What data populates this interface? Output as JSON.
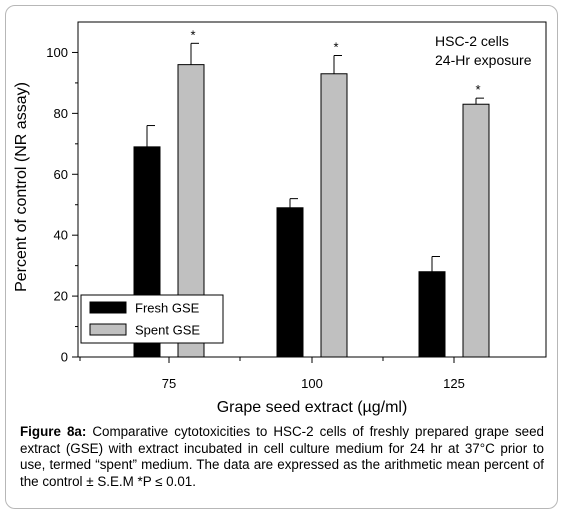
{
  "chart_data": {
    "type": "bar",
    "xlabel": "Grape seed extract (µg/ml)",
    "ylabel": "Percent of control (NR assay)",
    "ylim": [
      0,
      110
    ],
    "yticks": [
      "0",
      "20",
      "40",
      "60",
      "80",
      "100"
    ],
    "categories": [
      "75",
      "100",
      "125"
    ],
    "series": [
      {
        "name": "Fresh GSE",
        "values": [
          69,
          49,
          28
        ],
        "errors": [
          7,
          3,
          5
        ],
        "color": "#000000"
      },
      {
        "name": "Spent GSE",
        "values": [
          96,
          93,
          83
        ],
        "errors": [
          7,
          6,
          2
        ],
        "color": "#c0c0c0"
      }
    ],
    "significance": [
      "*",
      "*",
      "*"
    ],
    "annotation": [
      "HSC-2 cells",
      "24-Hr exposure"
    ],
    "legend_position": "bottom-left",
    "grid": false
  },
  "caption": {
    "label": "Figure 8a:",
    "text": " Comparative cytotoxicities to HSC-2 cells of freshly prepared grape seed extract (GSE) with extract incubated in cell culture medium for 24 hr at 37°C prior to use, termed “spent” medium. The data are expressed as the arithmetic mean percent of the control ± S.E.M  *P ≤ 0.01."
  }
}
